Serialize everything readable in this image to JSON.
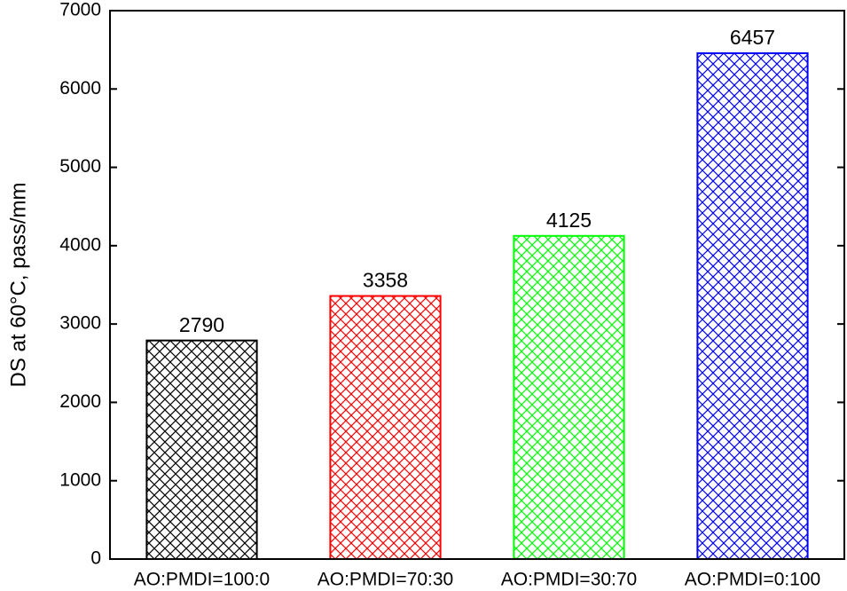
{
  "chart_data": {
    "type": "bar",
    "y_label": "DS at 60°C, pass/mm",
    "categories": [
      "AO:PMDI=100:0",
      "AO:PMDI=70:30",
      "AO:PMDI=30:70",
      "AO:PMDI=0:100"
    ],
    "values": [
      2790,
      3358,
      4125,
      6457
    ],
    "colors": [
      "#000000",
      "#ff0000",
      "#00ff00",
      "#0000ff"
    ],
    "ylim": [
      0,
      7000
    ],
    "yticks": [
      0,
      1000,
      2000,
      3000,
      4000,
      5000,
      6000,
      7000
    ],
    "pattern": "crosshatch"
  }
}
